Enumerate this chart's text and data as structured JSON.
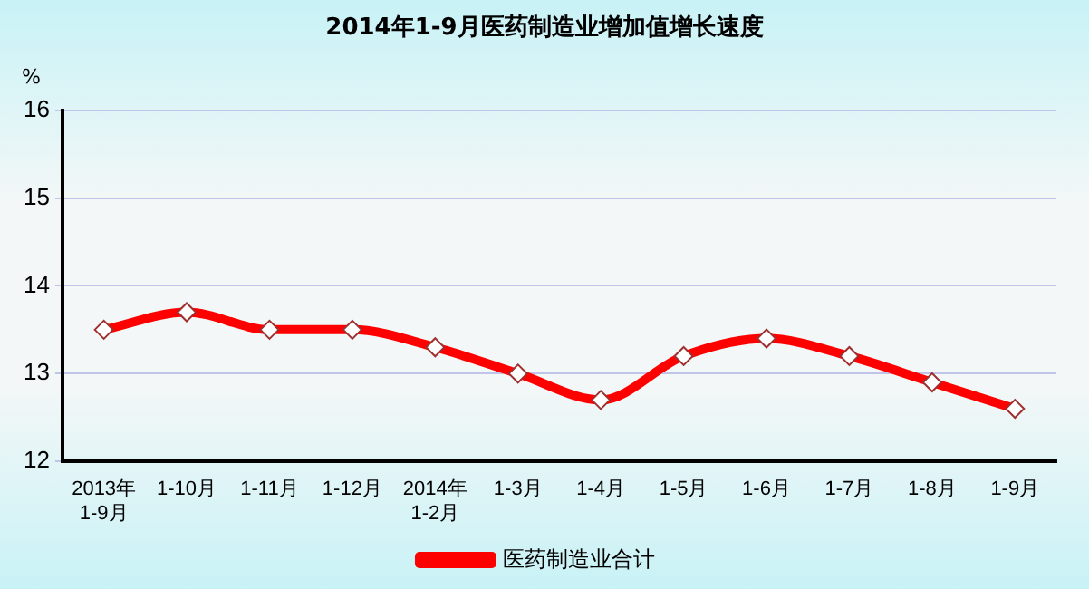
{
  "chart_data": {
    "type": "line",
    "title": "2014年1-9月医药制造业增加值增长速度",
    "ylabel": "%",
    "categories": [
      "2013年\n1-9月",
      "1-10月",
      "1-11月",
      "1-12月",
      "2014年\n1-2月",
      "1-3月",
      "1-4月",
      "1-5月",
      "1-6月",
      "1-7月",
      "1-8月",
      "1-9月"
    ],
    "series": [
      {
        "name": "医药制造业合计",
        "color": "#ff0000",
        "values": [
          13.5,
          13.7,
          13.5,
          13.5,
          13.3,
          13.0,
          12.7,
          13.2,
          13.4,
          13.2,
          12.9,
          12.6
        ]
      }
    ],
    "ylim": [
      12,
      16
    ],
    "yticks": [
      12,
      13,
      14,
      15,
      16
    ],
    "grid": "y",
    "legend": "bottom",
    "marker": "diamond",
    "line_style": "solid"
  }
}
